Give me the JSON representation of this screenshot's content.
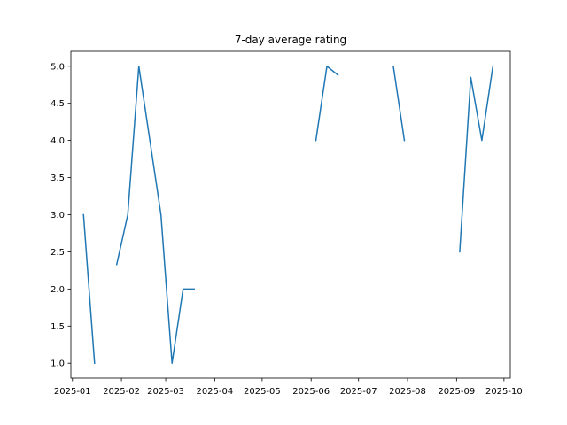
{
  "chart_data": {
    "type": "line",
    "title": "7-day average rating",
    "xlabel": "",
    "ylabel": "",
    "x_axis_type": "date",
    "xlim": [
      "2024-12-31",
      "2025-10-05"
    ],
    "ylim": [
      0.8,
      5.2
    ],
    "grid": false,
    "line_color": "#1f77b4",
    "x_ticks": [
      {
        "date": "2025-01-01",
        "label": "2025-01"
      },
      {
        "date": "2025-02-01",
        "label": "2025-02"
      },
      {
        "date": "2025-03-01",
        "label": "2025-03"
      },
      {
        "date": "2025-04-01",
        "label": "2025-04"
      },
      {
        "date": "2025-05-01",
        "label": "2025-05"
      },
      {
        "date": "2025-06-01",
        "label": "2025-06"
      },
      {
        "date": "2025-07-01",
        "label": "2025-07"
      },
      {
        "date": "2025-08-01",
        "label": "2025-08"
      },
      {
        "date": "2025-09-01",
        "label": "2025-09"
      },
      {
        "date": "2025-10-01",
        "label": "2025-10"
      }
    ],
    "y_ticks": [
      {
        "value": 1.0,
        "label": "1.0"
      },
      {
        "value": 1.5,
        "label": "1.5"
      },
      {
        "value": 2.0,
        "label": "2.0"
      },
      {
        "value": 2.5,
        "label": "2.5"
      },
      {
        "value": 3.0,
        "label": "3.0"
      },
      {
        "value": 3.5,
        "label": "3.5"
      },
      {
        "value": 4.0,
        "label": "4.0"
      },
      {
        "value": 4.5,
        "label": "4.5"
      },
      {
        "value": 5.0,
        "label": "5.0"
      }
    ],
    "segments": [
      [
        {
          "x": "2025-01-08",
          "y": 3.0
        },
        {
          "x": "2025-01-15",
          "y": 1.0
        }
      ],
      [
        {
          "x": "2025-01-29",
          "y": 2.33
        },
        {
          "x": "2025-02-05",
          "y": 3.0
        },
        {
          "x": "2025-02-12",
          "y": 5.0
        },
        {
          "x": "2025-02-26",
          "y": 3.0
        },
        {
          "x": "2025-03-05",
          "y": 1.0
        },
        {
          "x": "2025-03-12",
          "y": 2.0
        },
        {
          "x": "2025-03-19",
          "y": 2.0
        }
      ],
      [
        {
          "x": "2025-06-04",
          "y": 4.0
        },
        {
          "x": "2025-06-11",
          "y": 5.0
        },
        {
          "x": "2025-06-18",
          "y": 4.88
        }
      ],
      [
        {
          "x": "2025-07-23",
          "y": 5.0
        },
        {
          "x": "2025-07-30",
          "y": 4.0
        }
      ],
      [
        {
          "x": "2025-09-03",
          "y": 2.5
        },
        {
          "x": "2025-09-10",
          "y": 4.85
        },
        {
          "x": "2025-09-17",
          "y": 4.0
        },
        {
          "x": "2025-09-24",
          "y": 5.0
        }
      ]
    ]
  }
}
